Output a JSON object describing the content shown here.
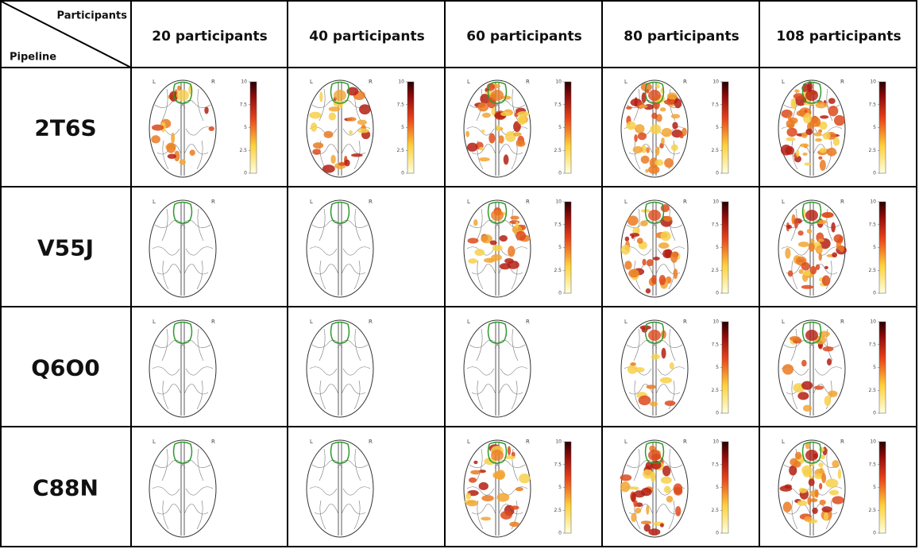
{
  "header": {
    "top_label": "Participants",
    "side_label": "Pipeline",
    "columns": [
      "20 participants",
      "40 participants",
      "60 participants",
      "80 participants",
      "108 participants"
    ]
  },
  "brain_labels": {
    "left": "L",
    "right": "R"
  },
  "colorbar_ticks": [
    0,
    2.5,
    5,
    7.5,
    10
  ],
  "rows": [
    {
      "name": "2T6S",
      "colorbar": [
        true,
        true,
        true,
        true,
        true
      ]
    },
    {
      "name": "V55J",
      "colorbar": [
        false,
        false,
        true,
        true,
        true
      ]
    },
    {
      "name": "Q6O0",
      "colorbar": [
        false,
        false,
        false,
        true,
        true
      ]
    },
    {
      "name": "C88N",
      "colorbar": [
        false,
        false,
        true,
        true,
        true
      ]
    }
  ]
}
